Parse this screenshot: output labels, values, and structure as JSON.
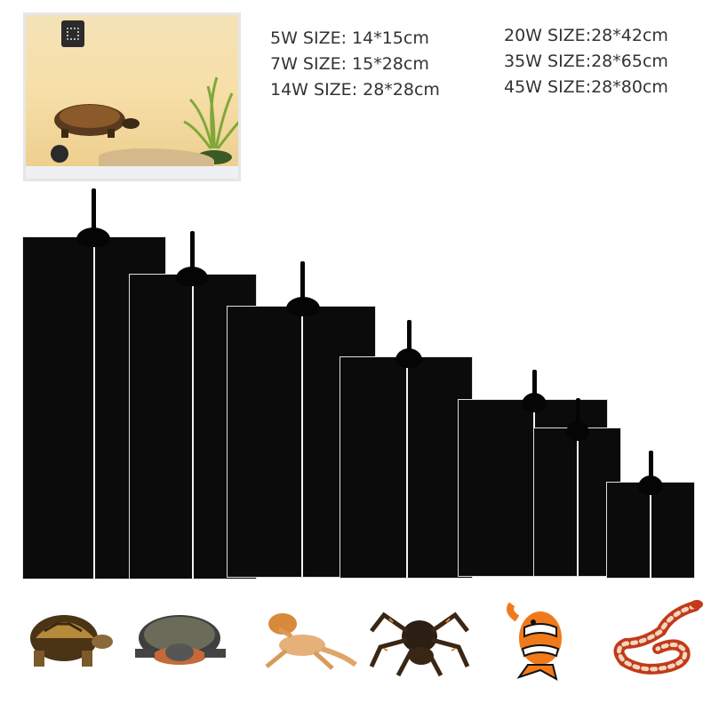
{
  "specs_left": [
    "5W SIZE: 14*15cm",
    "7W SIZE: 15*28cm",
    "14W SIZE: 28*28cm"
  ],
  "specs_right": [
    "20W SIZE:28*42cm",
    "35W SIZE:28*65cm",
    "45W SIZE:28*80cm"
  ],
  "colors": {
    "mat": "#0b0b0b",
    "text": "#333333"
  },
  "icons": [
    "terrarium-photo",
    "tortoise-icon",
    "turtle-icon",
    "bearded-dragon-icon",
    "tarantula-icon",
    "clownfish-icon",
    "snake-icon"
  ]
}
